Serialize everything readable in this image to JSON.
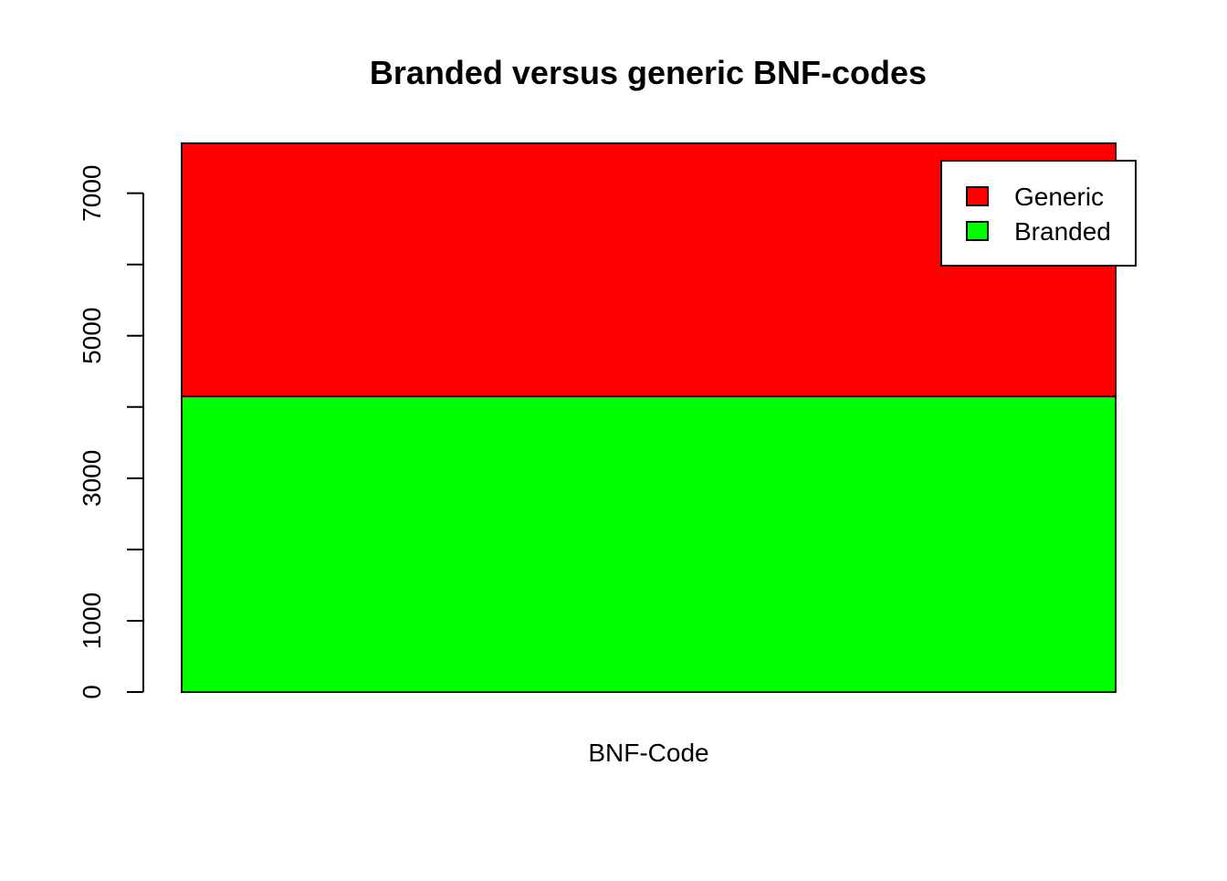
{
  "chart_data": {
    "type": "bar",
    "stacked": true,
    "title": "Branded versus generic BNF-codes",
    "xlabel": "",
    "ylabel": "",
    "categories": [
      "BNF-Code"
    ],
    "series": [
      {
        "name": "Branded",
        "values": [
          4150
        ],
        "color": "#00FF00"
      },
      {
        "name": "Generic",
        "values": [
          3550
        ],
        "color": "#FF0000"
      }
    ],
    "ylim": [
      0,
      7700
    ],
    "y_ticks": [
      0,
      1000,
      2000,
      3000,
      4000,
      5000,
      6000,
      7000
    ],
    "y_tick_labels": [
      "0",
      "1000",
      "3000",
      "5000",
      "7000"
    ],
    "legend": {
      "position": "top-right",
      "entries": [
        {
          "label": "Generic",
          "color": "#FF0000"
        },
        {
          "label": "Branded",
          "color": "#00FF00"
        }
      ]
    },
    "grid": false
  }
}
